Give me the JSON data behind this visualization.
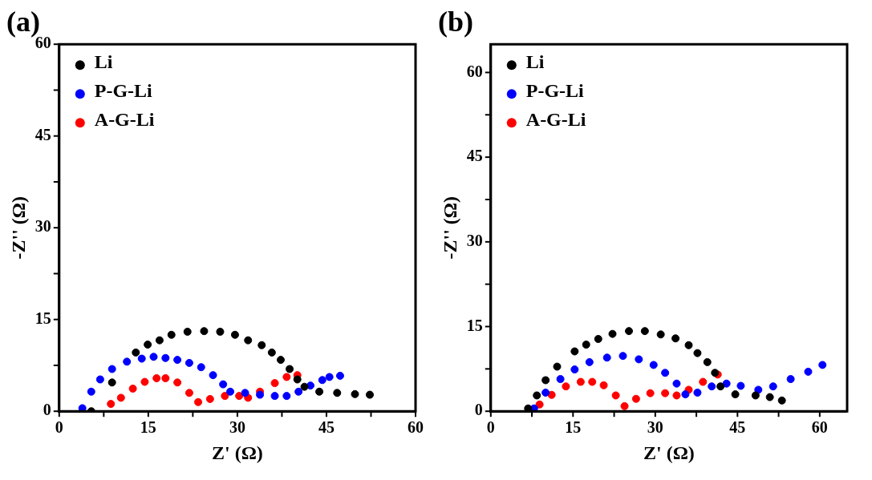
{
  "chart_data": [
    {
      "type": "scatter",
      "title": "(a)",
      "xlabel": "Z' (Ω)",
      "ylabel": "-Z'' (Ω)",
      "xlim": [
        0,
        60
      ],
      "ylim": [
        0,
        60
      ],
      "xticks": [
        0,
        {
          "value": 7.5,
          "label": null
        },
        15,
        {
          "value": 22.5,
          "label": null
        },
        30,
        {
          "value": 37.5,
          "label": null
        },
        45,
        {
          "value": 52.5,
          "label": null
        },
        60
      ],
      "yticks": [
        0,
        {
          "value": 7.5,
          "label": null
        },
        15,
        {
          "value": 22.5,
          "label": null
        },
        30,
        {
          "value": 37.5,
          "label": null
        },
        45,
        {
          "value": 52.5,
          "label": null
        },
        60
      ],
      "legend": "top left",
      "marker": "circle",
      "series": [
        {
          "name": "Li",
          "color": "#000000",
          "x": [
            5.4,
            8.9,
            12.9,
            14.9,
            16.9,
            18.9,
            21.6,
            24.4,
            27.1,
            29.6,
            31.8,
            34.1,
            35.8,
            37.3,
            38.8,
            40.1,
            41.3,
            43.8,
            46.8,
            49.8,
            52.3
          ],
          "values": [
            0,
            4.7,
            9.6,
            10.9,
            11.6,
            12.5,
            13,
            13.1,
            13,
            12.5,
            11.6,
            10.8,
            9.6,
            8.4,
            6.9,
            5.2,
            4,
            3.2,
            3,
            2.8,
            2.7
          ]
        },
        {
          "name": "P-G-Li",
          "color": "#0000ff",
          "x": [
            3.9,
            5.4,
            6.9,
            8.9,
            11.4,
            13.9,
            15.9,
            17.9,
            19.9,
            21.9,
            23.9,
            25.9,
            27.6,
            28.8,
            31.3,
            33.8,
            36.3,
            38.3,
            40.3,
            42.3,
            44.3,
            45.5,
            47.3
          ],
          "values": [
            0.5,
            3.2,
            5.2,
            6.9,
            8.1,
            8.6,
            8.9,
            8.7,
            8.4,
            7.9,
            7.2,
            5.9,
            4.4,
            3.2,
            3,
            2.7,
            2.5,
            2.5,
            3.2,
            4.2,
            5.1,
            5.6,
            5.8
          ]
        },
        {
          "name": "A-G-Li",
          "color": "#ff0000",
          "x": [
            8.7,
            10.4,
            12.4,
            14.4,
            16.4,
            17.9,
            19.9,
            21.9,
            23.4,
            25.4,
            27.9,
            30.3,
            31.8,
            33.8,
            36.3,
            38.3,
            40.1
          ],
          "values": [
            1.2,
            2.2,
            3.7,
            4.8,
            5.4,
            5.4,
            4.7,
            3,
            1.5,
            2,
            2.5,
            2.5,
            2.2,
            3.2,
            4.6,
            5.6,
            5.9
          ]
        }
      ]
    },
    {
      "type": "scatter",
      "title": "(b)",
      "xlabel": "Z' (Ω)",
      "ylabel": "-Z'' (Ω)",
      "xlim": [
        0,
        65
      ],
      "ylim": [
        0,
        65
      ],
      "xticks": [
        0,
        {
          "value": 7.5,
          "label": null
        },
        15,
        {
          "value": 22.5,
          "label": null
        },
        30,
        {
          "value": 37.5,
          "label": null
        },
        45,
        {
          "value": 52.5,
          "label": null
        },
        60
      ],
      "yticks": [
        0,
        {
          "value": 7.5,
          "label": null
        },
        15,
        {
          "value": 22.5,
          "label": null
        },
        30,
        {
          "value": 37.5,
          "label": null
        },
        45,
        {
          "value": 52.5,
          "label": null
        },
        60
      ],
      "legend": "top left",
      "marker": "circle",
      "series": [
        {
          "name": "Li",
          "color": "#000000",
          "x": [
            6.8,
            8.4,
            10,
            12.1,
            15.3,
            17.4,
            19.6,
            22.2,
            25.2,
            28.1,
            31,
            33.7,
            36.1,
            37.7,
            39.5,
            40.9,
            41.9,
            44.6,
            48.3,
            50.9,
            53.1
          ],
          "values": [
            0.5,
            2.8,
            5.5,
            7.9,
            10.6,
            11.8,
            12.8,
            13.7,
            14.2,
            14.2,
            13.6,
            12.9,
            11.7,
            10.3,
            8.7,
            6.8,
            4.4,
            3,
            2.8,
            2.5,
            1.9
          ]
        },
        {
          "name": "P-G-Li",
          "color": "#0000ff",
          "x": [
            7.9,
            10,
            12.7,
            15.3,
            18,
            21.2,
            24.1,
            27,
            29.7,
            31.8,
            33.9,
            35.5,
            37.7,
            40.3,
            43,
            45.6,
            48.8,
            51.5,
            54.7,
            57.9,
            60.5
          ],
          "values": [
            0.5,
            3.3,
            5.7,
            7.4,
            8.7,
            9.5,
            9.8,
            9.2,
            8.2,
            6.8,
            4.9,
            3,
            3.3,
            4.4,
            4.9,
            4.5,
            3.8,
            4.4,
            5.7,
            7,
            8.2
          ]
        },
        {
          "name": "A-G-Li",
          "color": "#ff0000",
          "x": [
            8.9,
            11.1,
            13.7,
            16.4,
            18.5,
            20.6,
            22.8,
            24.4,
            26.5,
            29.1,
            31.8,
            33.9,
            36.1,
            38.7,
            41.4
          ],
          "values": [
            1.2,
            2.9,
            4.4,
            5.2,
            5.2,
            4.6,
            2.8,
            0.9,
            2.2,
            3.2,
            3.2,
            2.8,
            3.8,
            5.2,
            6.5
          ]
        }
      ]
    }
  ]
}
